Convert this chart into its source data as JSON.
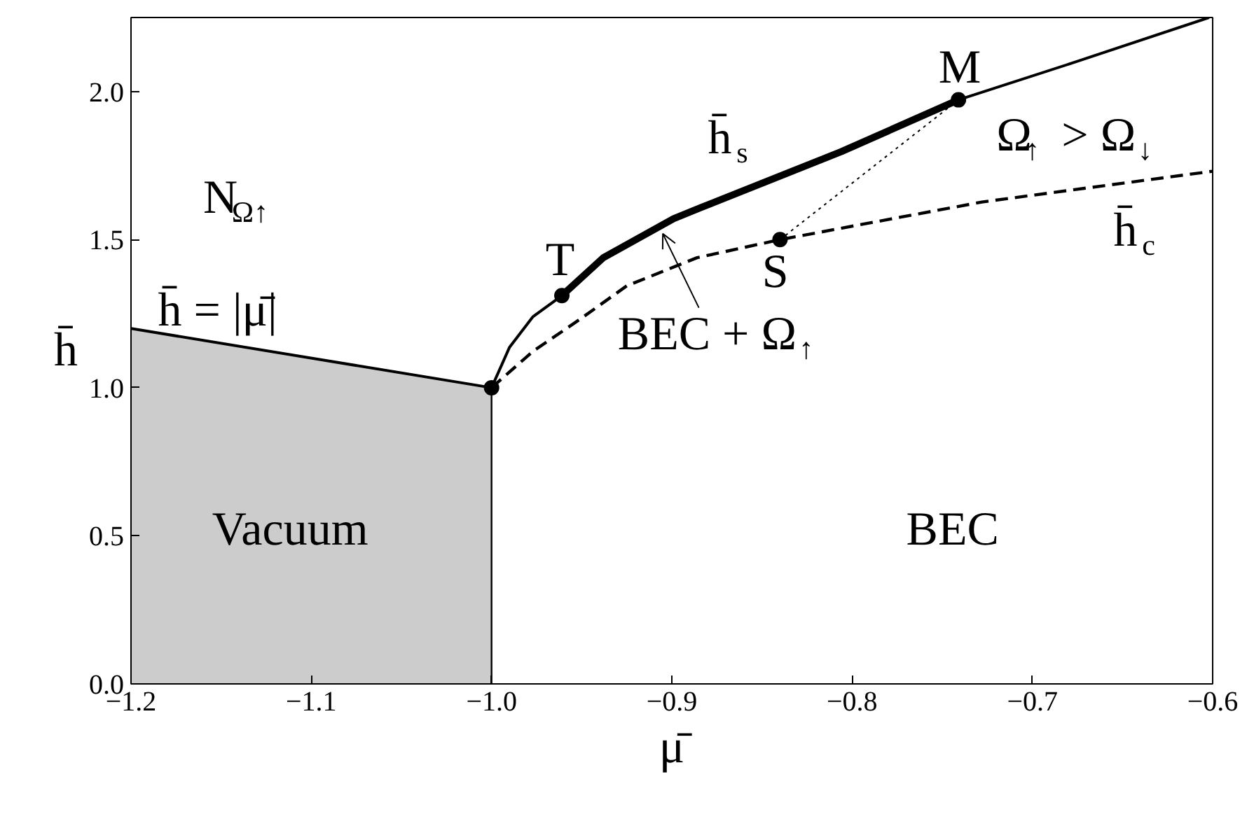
{
  "chart_data": {
    "type": "line",
    "xlabel": "μ̄",
    "ylabel": "h̄",
    "xlim": [
      -1.2,
      -0.6
    ],
    "ylim": [
      0,
      2.25
    ],
    "xticks": [
      {
        "value": -1.2,
        "label": "−1.2"
      },
      {
        "value": -1.1,
        "label": "−1.1"
      },
      {
        "value": -1.0,
        "label": "−1.0"
      },
      {
        "value": -0.9,
        "label": "−0.9"
      },
      {
        "value": -0.8,
        "label": "−0.8"
      },
      {
        "value": -0.7,
        "label": "−0.7"
      },
      {
        "value": -0.6,
        "label": "−0.6"
      }
    ],
    "yticks": [
      {
        "value": 0,
        "label": "0.0"
      },
      {
        "value": 0.5,
        "label": "0.5"
      },
      {
        "value": 1.0,
        "label": "1.0"
      },
      {
        "value": 1.5,
        "label": "1.5"
      },
      {
        "value": 2.0,
        "label": "2.0"
      }
    ],
    "grid": false,
    "series": [
      {
        "type": "area",
        "color": "#cccccc",
        "x": [
          -1.2,
          -1.0
        ],
        "values": [
          1.2,
          1.0
        ]
      },
      {
        "color": "#000000",
        "line_style": "solid",
        "x": [
          -1.0,
          -1.0
        ],
        "values": [
          0,
          1.0
        ]
      },
      {
        "color": "#000000",
        "line_style": "solid",
        "x": [
          -1.0,
          -0.99,
          -0.977,
          -0.961
        ],
        "values": [
          1.0,
          1.137,
          1.24,
          1.311
        ]
      },
      {
        "color": "#000000",
        "line_style": "solid",
        "x": [
          -0.961,
          -0.938,
          -0.899,
          -0.884,
          -0.806,
          -0.741
        ],
        "values": [
          1.311,
          1.439,
          1.571,
          1.608,
          1.797,
          1.972
        ]
      },
      {
        "color": "#000000",
        "line_style": "solid",
        "x": [
          -0.741,
          -0.676,
          -0.602
        ],
        "values": [
          1.972,
          2.1,
          2.25
        ]
      },
      {
        "color": "#000000",
        "line_style": "dashed",
        "x": [
          -1.0,
          -0.977,
          -0.951,
          -0.925,
          -0.886,
          -0.84,
          -0.728,
          -0.6
        ],
        "values": [
          1.0,
          1.123,
          1.231,
          1.344,
          1.439,
          1.5,
          1.627,
          1.731
        ]
      },
      {
        "color": "#000000",
        "line_style": "dotted",
        "x": [
          -0.84,
          -0.741
        ],
        "values": [
          1.5,
          1.972
        ]
      },
      {
        "type": "scatter",
        "color": "#000000",
        "marker": "circle",
        "x": [
          -1.0,
          -0.961,
          -0.741,
          -0.84
        ],
        "values": [
          1.0,
          1.311,
          1.972,
          1.5
        ]
      }
    ],
    "annotations": [
      "N$_{Ω↑}$",
      "h̄ = |μ̄|",
      "Vacuum",
      "BEC",
      {
        "text": "BEC + Ω$_{↑}$",
        "x": -0.905,
        "y": 1.52
      },
      "h̄$_{s}$",
      "Ω$_{↑}$ > Ω$_{↓}$",
      "h̄$_{c}$",
      "T",
      "M",
      "S"
    ]
  }
}
